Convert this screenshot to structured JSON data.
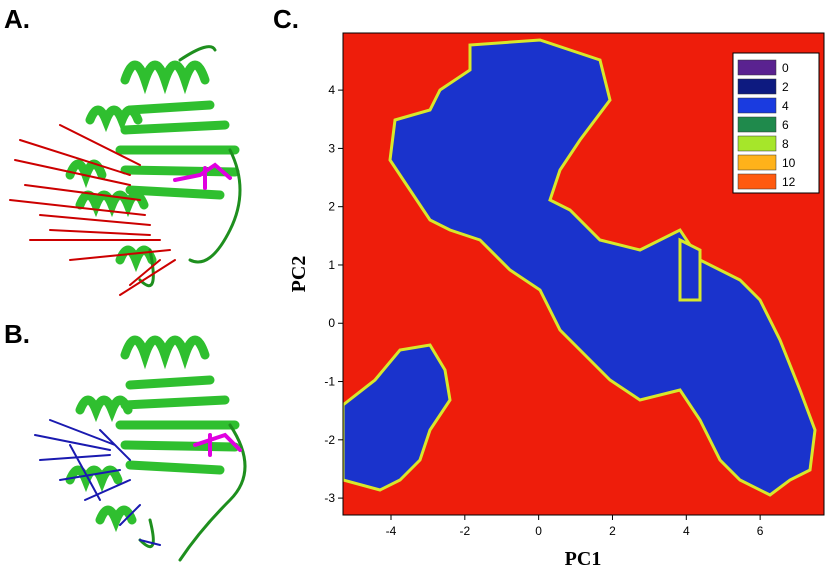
{
  "panel_labels": {
    "a": "A.",
    "b": "B.",
    "c": "C."
  },
  "chart_data": {
    "type": "contour",
    "x_label": "PC1",
    "y_label": "PC2",
    "xlim": [
      -5.3,
      7.73
    ],
    "ylim": [
      -3.29,
      4.98
    ],
    "xticks": [
      -4,
      -2,
      0,
      2,
      4,
      6
    ],
    "yticks": [
      -3,
      -2,
      -1,
      0,
      1,
      2,
      3,
      4
    ],
    "levels": [
      0,
      2,
      4,
      6,
      8,
      10,
      12
    ],
    "level_colors": [
      "#5a2290",
      "#0d1a80",
      "#1a3be0",
      "#1f8a4c",
      "#a6e62a",
      "#ffb21a",
      "#ff5a10"
    ],
    "background_color": "#ee1d0b"
  }
}
